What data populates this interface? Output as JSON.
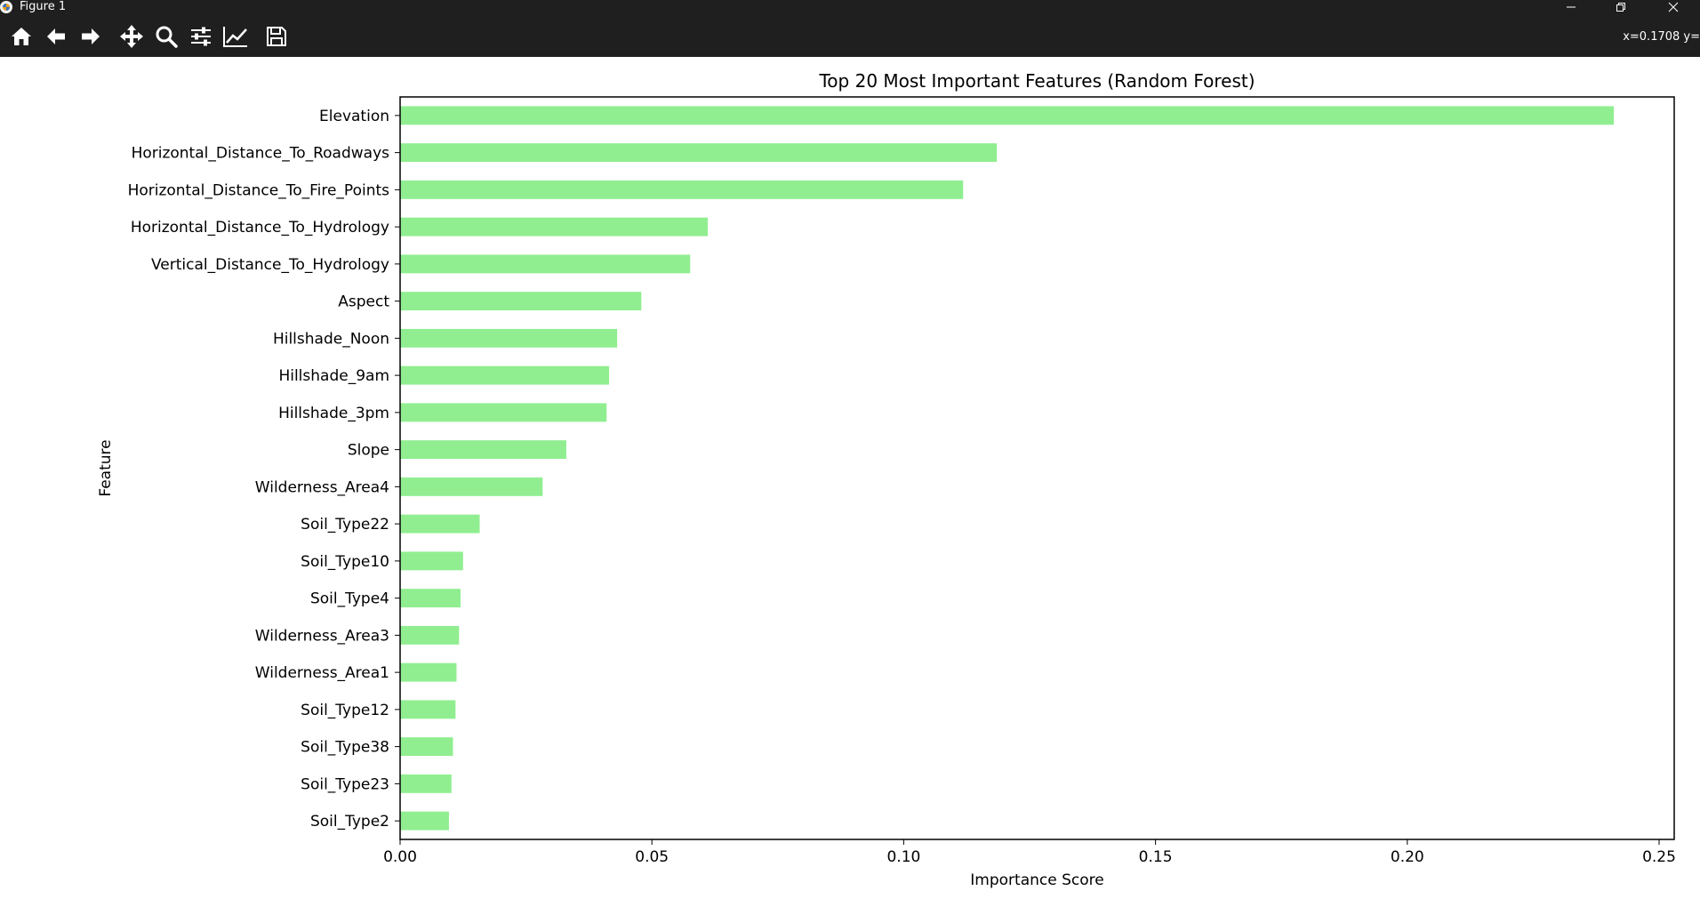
{
  "window": {
    "title": "Figure 1",
    "controls": [
      "minimize-icon",
      "restore-icon",
      "close-icon"
    ]
  },
  "toolbar": {
    "tools": [
      "home-icon",
      "back-arrow-icon",
      "forward-arrow-icon",
      "pan-icon",
      "zoom-icon",
      "subplots-config-icon",
      "edit-axis-icon",
      "save-icon"
    ],
    "coords": "x=0.1708 y="
  },
  "colors": {
    "bar": "#90ee90",
    "chrome": "#1f1f1f"
  },
  "chart_data": {
    "type": "bar",
    "orientation": "horizontal",
    "title": "Top 20 Most Important Features (Random Forest)",
    "xlabel": "Importance Score",
    "ylabel": "Feature",
    "xlim": [
      0,
      0.253
    ],
    "xticks": [
      0.0,
      0.05,
      0.1,
      0.15,
      0.2,
      0.25
    ],
    "xtick_labels": [
      "0.00",
      "0.05",
      "0.10",
      "0.15",
      "0.20",
      "0.25"
    ],
    "grid": false,
    "categories": [
      "Elevation",
      "Horizontal_Distance_To_Roadways",
      "Horizontal_Distance_To_Fire_Points",
      "Horizontal_Distance_To_Hydrology",
      "Vertical_Distance_To_Hydrology",
      "Aspect",
      "Hillshade_Noon",
      "Hillshade_9am",
      "Hillshade_3pm",
      "Slope",
      "Wilderness_Area4",
      "Soil_Type22",
      "Soil_Type10",
      "Soil_Type4",
      "Wilderness_Area3",
      "Wilderness_Area1",
      "Soil_Type12",
      "Soil_Type38",
      "Soil_Type23",
      "Soil_Type2"
    ],
    "values": [
      0.241,
      0.1185,
      0.1118,
      0.0611,
      0.0576,
      0.0479,
      0.0431,
      0.0415,
      0.041,
      0.033,
      0.0283,
      0.0158,
      0.0125,
      0.012,
      0.0117,
      0.0112,
      0.011,
      0.0105,
      0.0102,
      0.0097
    ]
  }
}
